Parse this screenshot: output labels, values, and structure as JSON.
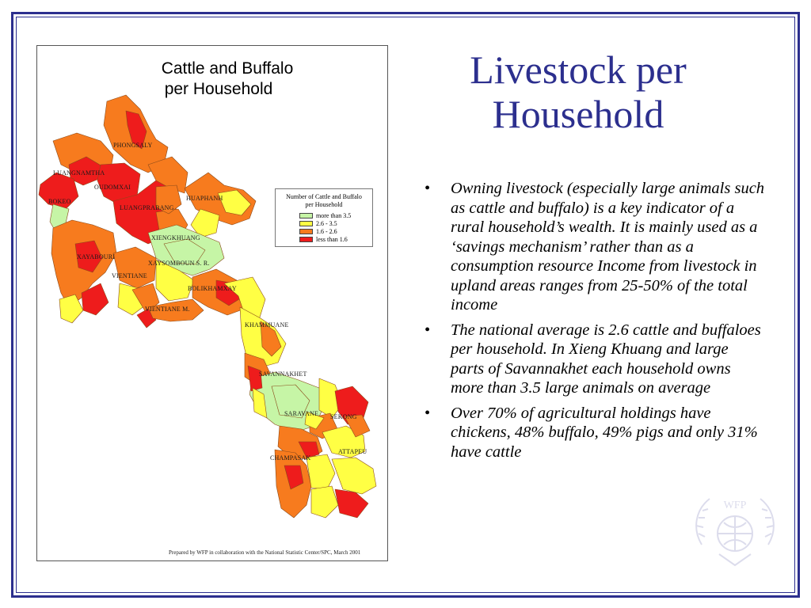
{
  "slide": {
    "title": "Livestock per Household",
    "bullets": [
      "Owning livestock (especially large animals such as cattle and buffalo) is a key indicator of a rural household’s wealth. It is mainly used as a ‘savings mechanism’ rather than as a consumption resource Income from livestock in upland areas ranges from 25-50% of the total income",
      "The national average is 2.6 cattle and buffaloes per household. In Xieng Khuang and large parts of Savannakhet each household owns more than 3.5 large animals on average",
      "Over 70% of agricultural holdings have chickens, 48% buffalo, 49% pigs and only 31% have cattle"
    ],
    "bullet_glyph": "•",
    "watermark_logo": "WFP",
    "frame_color": "#2c2f8e"
  },
  "map": {
    "title_line1": "Cattle and Buffalo",
    "title_line2": "per Household",
    "legend": {
      "title_line1": "Number of Cattle and Buffalo",
      "title_line2": "per Household",
      "items": [
        {
          "label": "more than 3.5",
          "color": "#c6f5a6"
        },
        {
          "label": "2.6 - 3.5",
          "color": "#ffff44"
        },
        {
          "label": "1.6 - 2.6",
          "color": "#f77b1e"
        },
        {
          "label": "less than 1.6",
          "color": "#ee1c1c"
        }
      ]
    },
    "province_labels": {
      "phongsaly": "PHONGSALY",
      "luangnamtha": "LUANGNAMTHA",
      "oudomxai": "OUDOMXAI",
      "bokeo": "BOKEO",
      "luangprabang": "LUANGPRABANG",
      "huaphanh": "HUAPHANH",
      "xiengkhuang": "XIENGKHUANG",
      "xayabouri": "XAYABOURI",
      "xaysomboun": "XAYSOMBOUN S. R.",
      "vientiane": "VIENTIANE",
      "bolikhamxay": "BOLIKHAMXAY",
      "vientiane_m": "VIENTIANE M.",
      "khammuane": "KHAMMUANE",
      "savannakhet": "SAVANNAKHET",
      "saravane": "SARAVANE",
      "sekong": "SEKONG",
      "champasak": "CHAMPASAK",
      "attapeu": "ATTAPEU"
    },
    "credit": "Prepared by WFP in collaboration with the National Statistic Center/SPC, March 2001"
  }
}
